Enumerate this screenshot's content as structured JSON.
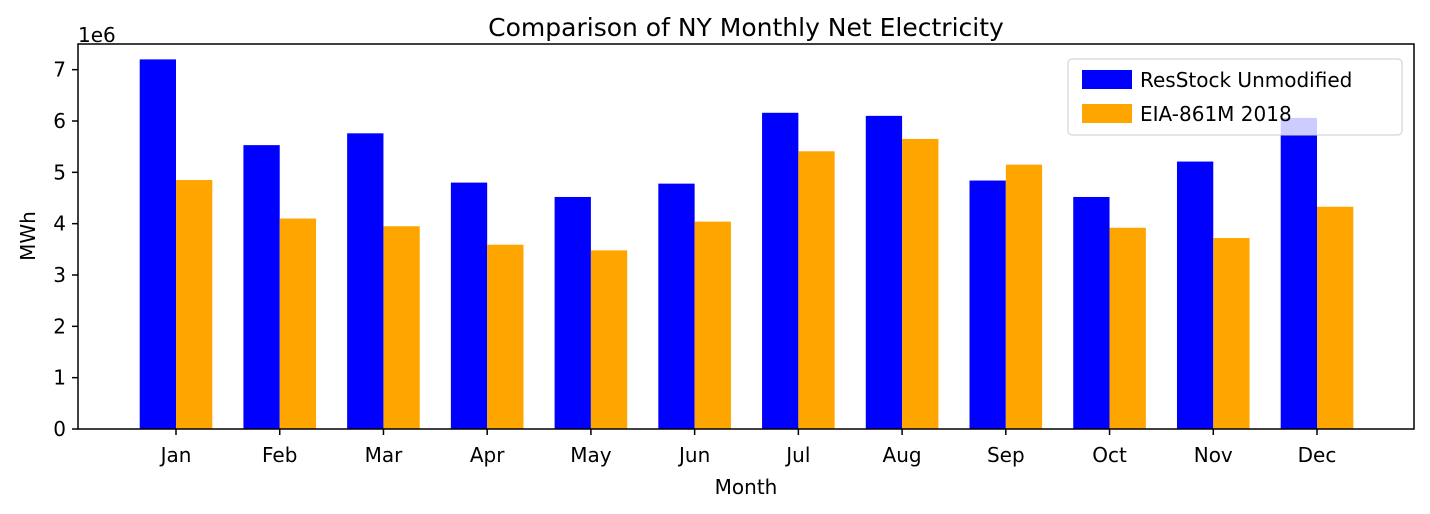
{
  "chart_data": {
    "type": "bar",
    "title": "Comparison of NY Monthly Net Electricity",
    "xlabel": "Month",
    "ylabel": "MWh",
    "offset_text": "1e6",
    "ylim": [
      0,
      7500000
    ],
    "yticks": [
      0,
      1000000,
      2000000,
      3000000,
      4000000,
      5000000,
      6000000,
      7000000
    ],
    "ytick_labels": [
      "0",
      "1",
      "2",
      "3",
      "4",
      "5",
      "6",
      "7"
    ],
    "categories": [
      "Jan",
      "Feb",
      "Mar",
      "Apr",
      "May",
      "Jun",
      "Jul",
      "Aug",
      "Sep",
      "Oct",
      "Nov",
      "Dec"
    ],
    "series": [
      {
        "name": "ResStock Unmodified",
        "color": "#0000ff",
        "values": [
          7200000,
          5530000,
          5760000,
          4800000,
          4520000,
          4780000,
          6160000,
          6100000,
          4840000,
          4520000,
          5210000,
          6060000
        ]
      },
      {
        "name": "EIA-861M 2018",
        "color": "#ffa500",
        "values": [
          4850000,
          4100000,
          3950000,
          3590000,
          3480000,
          4040000,
          5410000,
          5650000,
          5150000,
          3920000,
          3720000,
          4330000
        ]
      }
    ],
    "legend_position": "top-right",
    "grid": false
  }
}
